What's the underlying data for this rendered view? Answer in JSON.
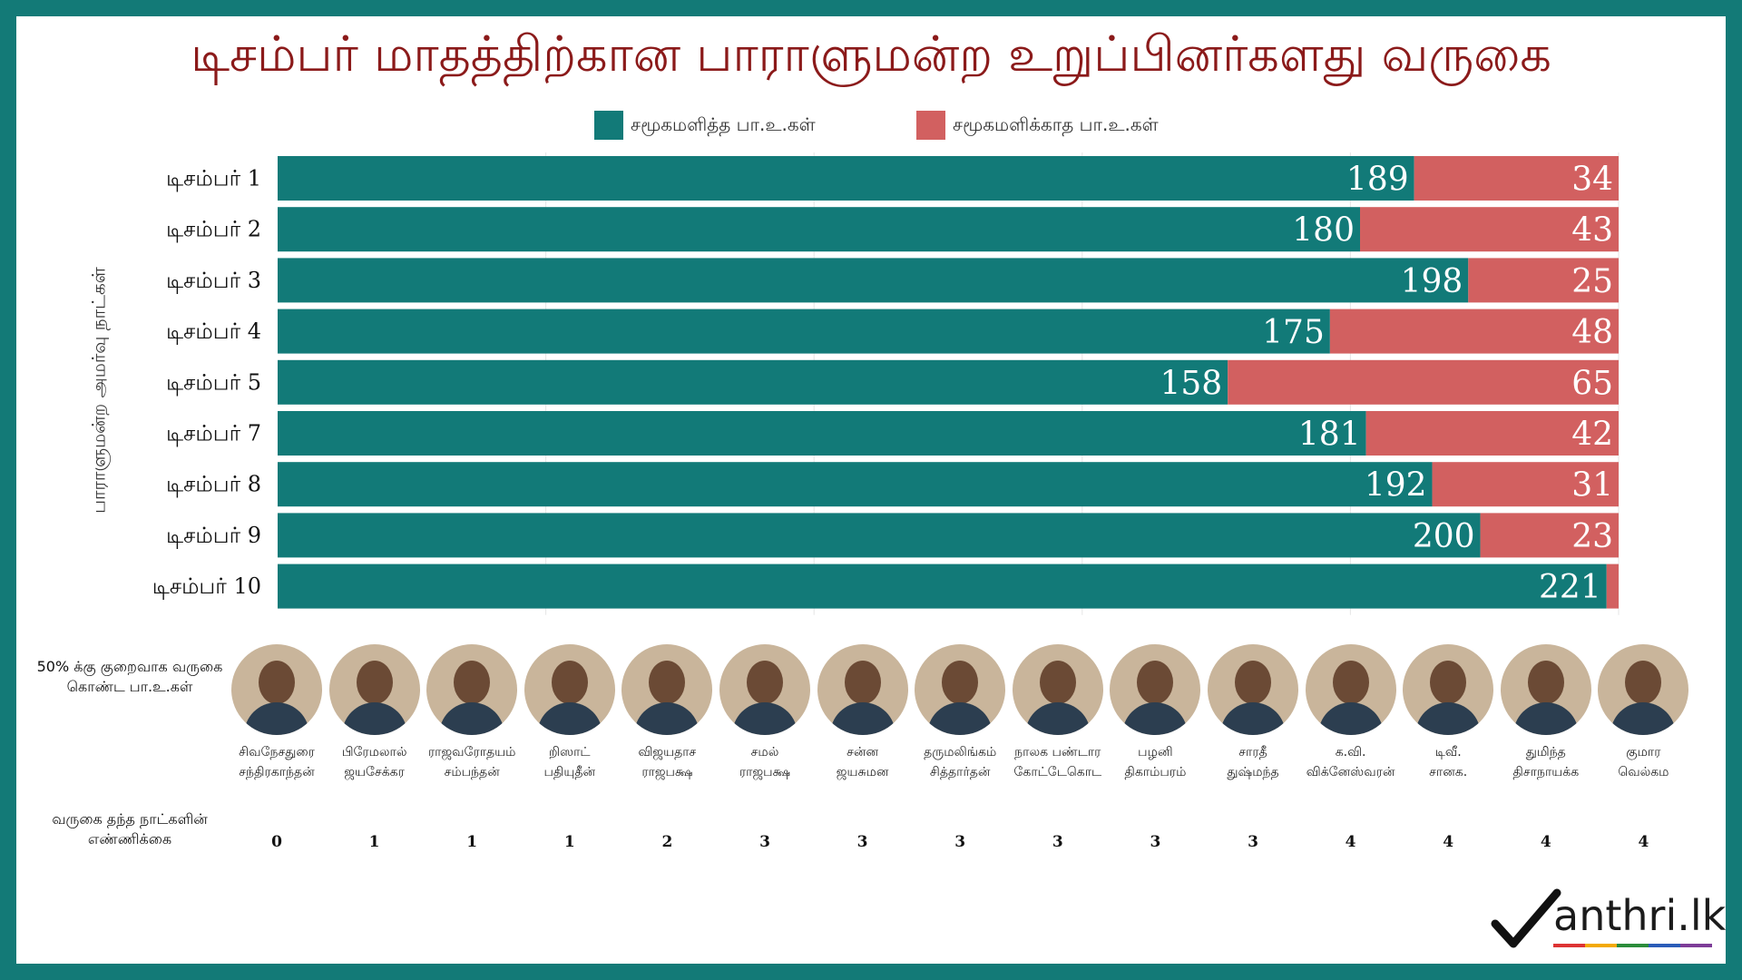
{
  "title": "டிசம்பர் மாதத்திற்கான பாராளுமன்ற உறுப்பினர்களது வருகை",
  "legend": {
    "present": {
      "label": "சமூகமளித்த பா.உ.கள்",
      "color": "#127a78"
    },
    "absent": {
      "label": "சமூகமளிக்காத பா.உ.கள்",
      "color": "#d26060"
    }
  },
  "y_axis_title": "பாராளுமன்ற அமர்வு நாட்கள்",
  "chart_data": {
    "type": "bar",
    "orientation": "horizontal",
    "stacked": true,
    "title": "டிசம்பர் மாதத்திற்கான பாராளுமன்ற உறுப்பினர்களது வருகை",
    "ylabel": "பாராளுமன்ற அமர்வு நாட்கள்",
    "categories": [
      "டிசம்பர் 1",
      "டிசம்பர் 2",
      "டிசம்பர் 3",
      "டிசம்பர் 4",
      "டிசம்பர் 5",
      "டிசம்பர் 7",
      "டிசம்பர் 8",
      "டிசம்பர் 9",
      "டிசம்பர் 10"
    ],
    "series": [
      {
        "name": "சமூகமளித்த பா.உ.கள்",
        "color": "#127a78",
        "values": [
          189,
          180,
          198,
          175,
          158,
          181,
          192,
          200,
          221
        ]
      },
      {
        "name": "சமூகமளிக்காத பா.உ.கள்",
        "color": "#d26060",
        "values": [
          34,
          43,
          25,
          48,
          65,
          42,
          31,
          23,
          2
        ]
      }
    ],
    "xlim": [
      0,
      223
    ],
    "grid": true,
    "legend_position": "top"
  },
  "mps": {
    "heading": "50% க்கு குறைவாக வருகை கொண்ட பா.உ.கள்",
    "count_heading": "வருகை தந்த நாட்களின் எண்ணிக்கை",
    "list": [
      {
        "name1": "சிவநேசதுரை",
        "name2": "சந்திரகாந்தன்",
        "days": "0"
      },
      {
        "name1": "பிரேமலால்",
        "name2": "ஜயசேக்கர",
        "days": "1"
      },
      {
        "name1": "ராஜவரோதயம்",
        "name2": "சம்பந்தன்",
        "days": "1"
      },
      {
        "name1": "றிஸாட்",
        "name2": "பதியுதீன்",
        "days": "1"
      },
      {
        "name1": "விஜயதாச",
        "name2": "ராஜபக்ஷ",
        "days": "2"
      },
      {
        "name1": "சமல்",
        "name2": "ராஜபக்ஷ",
        "days": "3"
      },
      {
        "name1": "சன்ன",
        "name2": "ஜயசுமன",
        "days": "3"
      },
      {
        "name1": "தருமலிங்கம்",
        "name2": "சித்தார்தன்",
        "days": "3"
      },
      {
        "name1": "நாலக பண்டார",
        "name2": "கோட்டேகொட",
        "days": "3"
      },
      {
        "name1": "பழனி",
        "name2": "திகாம்பரம்",
        "days": "3"
      },
      {
        "name1": "சாரதீ",
        "name2": "துஷ்மந்த",
        "days": "3"
      },
      {
        "name1": "க.வி.",
        "name2": "விக்னேஸ்வரன்",
        "days": "4"
      },
      {
        "name1": "டிவீ.",
        "name2": "சானக.",
        "days": "4"
      },
      {
        "name1": "துமிந்த",
        "name2": "திசாநாயக்க",
        "days": "4"
      },
      {
        "name1": "குமார",
        "name2": "வெல்கம",
        "days": "4"
      }
    ]
  },
  "logo": {
    "text": "anthri.lk"
  }
}
